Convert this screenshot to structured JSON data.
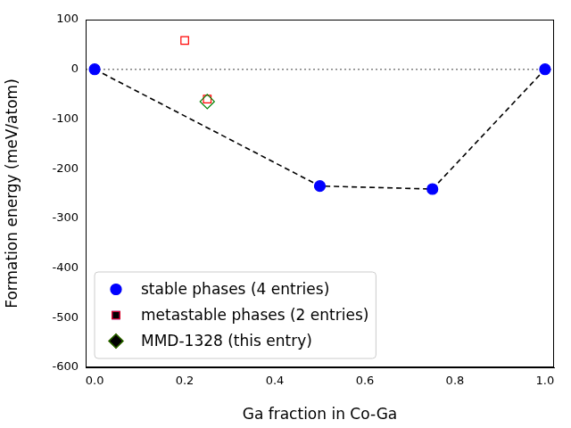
{
  "chart_data": {
    "type": "scatter",
    "x_label": "Ga fraction in Co-Ga",
    "y_label": "Formation energy (meV/atom)",
    "xlim": [
      -0.02,
      1.02
    ],
    "xticks": [
      {
        "value": 0,
        "label": "0.0"
      },
      0.2,
      0.4,
      0.6,
      0.8,
      {
        "value": 1,
        "label": "1.0"
      }
    ],
    "ylim": [
      -600,
      100
    ],
    "yticks": [
      -600,
      -500,
      -400,
      -300,
      -200,
      -100,
      0,
      100
    ],
    "grid": false,
    "legend": "lower left",
    "hlines": [
      {
        "value": 0,
        "line_style": "dotted",
        "color": "#808080"
      }
    ],
    "series": [
      {
        "name": "stable phases (4 entries)",
        "color": "#0000ff",
        "marker": "circle",
        "line_style": "dashed",
        "x": [
          0,
          0.5,
          0.75,
          1
        ],
        "values": [
          0,
          -235,
          -241,
          0
        ]
      },
      {
        "name": "metastable phases (2 entries)",
        "color": "#ff0000",
        "marker": "square-open",
        "x": [
          0.2,
          0.25
        ],
        "values": [
          58,
          -60
        ]
      },
      {
        "name": "MMD-1328 (this entry)",
        "color": "#008000",
        "marker": "diamond-open",
        "x": [
          0.25
        ],
        "values": [
          -65
        ]
      }
    ]
  }
}
